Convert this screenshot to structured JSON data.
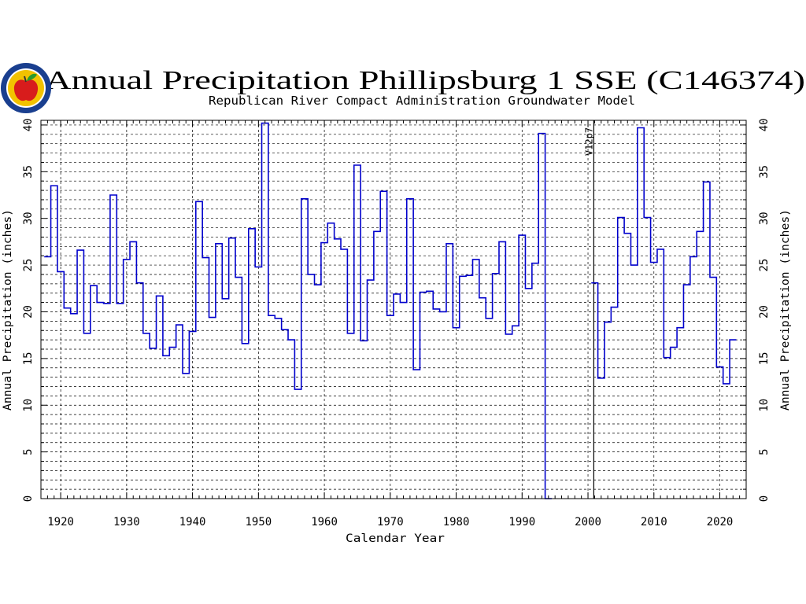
{
  "header": {
    "title": "Annual Precipitation Phillipsburg 1 SSE (C146374)",
    "subtitle": "Republican River Compact Administration Groundwater Model"
  },
  "logo": {
    "icon": "rrca-apple-seal-icon",
    "colors": {
      "ring": "#1a3f8f",
      "field": "#f2c200",
      "apple": "#d81c1c",
      "leaf": "#2a9a2a"
    }
  },
  "annotation": {
    "label": "V12p7",
    "x": 2001
  },
  "colors": {
    "series": "#0000cc",
    "grid": "#000000",
    "axis": "#000000"
  },
  "chart_data": {
    "type": "line",
    "style": "step",
    "title": "Annual Precipitation Phillipsburg 1 SSE (C146374)",
    "xlabel": "Calendar Year",
    "ylabel": "Annual Precipitation (inches)",
    "ylabel_right": "Annual Precipitation (inches)",
    "xlim": [
      1917,
      2024
    ],
    "ylim": [
      0,
      40.5
    ],
    "xticks": [
      1920,
      1930,
      1940,
      1950,
      1960,
      1970,
      1980,
      1990,
      2000,
      2010,
      2020
    ],
    "xticklabels": [
      "1920",
      "1930",
      "1940",
      "1950",
      "1960",
      "1970",
      "1980",
      "1990",
      "2000",
      "2010",
      "2020"
    ],
    "yticks": [
      0,
      5,
      10,
      15,
      20,
      25,
      30,
      35,
      40
    ],
    "yticklabels": [
      "0",
      "5",
      "10",
      "15",
      "20",
      "25",
      "30",
      "35",
      "40"
    ],
    "grid": true,
    "series": [
      {
        "x": [
          1918,
          1919,
          1920,
          1921,
          1922,
          1923,
          1924,
          1925,
          1926,
          1927,
          1928,
          1929,
          1930,
          1931,
          1932,
          1933,
          1934,
          1935,
          1936,
          1937,
          1938,
          1939,
          1940,
          1941,
          1942,
          1943,
          1944,
          1945,
          1946,
          1947,
          1948,
          1949,
          1950,
          1951,
          1952,
          1953,
          1954,
          1955,
          1956,
          1957,
          1958,
          1959,
          1960,
          1961,
          1962,
          1963,
          1964,
          1965,
          1966,
          1967,
          1968,
          1969,
          1970,
          1971,
          1972,
          1973,
          1974,
          1975,
          1976,
          1977,
          1978,
          1979,
          1980,
          1981,
          1982,
          1983,
          1984,
          1985,
          1986,
          1987,
          1988,
          1989,
          1990,
          1991,
          1992,
          1993,
          1994
        ],
        "values": [
          25.9,
          33.5,
          24.3,
          20.4,
          19.8,
          26.6,
          17.7,
          22.8,
          21.0,
          20.9,
          32.5,
          20.9,
          25.6,
          27.5,
          23.1,
          17.7,
          16.1,
          21.7,
          15.3,
          16.2,
          18.6,
          13.4,
          17.9,
          31.8,
          25.8,
          19.4,
          27.3,
          21.4,
          27.9,
          23.7,
          16.6,
          28.9,
          24.8,
          40.2,
          19.6,
          19.3,
          18.1,
          17.0,
          11.7,
          32.1,
          24.0,
          22.9,
          27.4,
          29.5,
          27.8,
          26.7,
          17.7,
          35.7,
          16.9,
          23.4,
          28.6,
          32.9,
          19.6,
          21.9,
          21.0,
          32.1,
          13.8,
          22.1,
          22.2,
          20.3,
          20.0,
          27.3,
          18.3,
          23.8,
          23.9,
          25.6,
          21.5,
          19.3,
          24.1,
          27.5,
          17.6,
          18.5,
          28.2,
          22.5,
          25.2,
          39.1,
          0
        ]
      },
      {
        "x": [
          2001,
          2002,
          2003,
          2004,
          2005,
          2006,
          2007,
          2008,
          2009,
          2010,
          2011,
          2012,
          2013,
          2014,
          2015,
          2016,
          2017,
          2018,
          2019,
          2020,
          2021,
          2022
        ],
        "values": [
          23.1,
          12.9,
          18.9,
          20.5,
          30.1,
          28.4,
          25.0,
          39.7,
          30.1,
          25.3,
          26.7,
          15.1,
          16.2,
          18.3,
          22.9,
          25.9,
          28.6,
          33.9,
          23.7,
          14.1,
          12.3,
          17.0
        ]
      }
    ]
  }
}
